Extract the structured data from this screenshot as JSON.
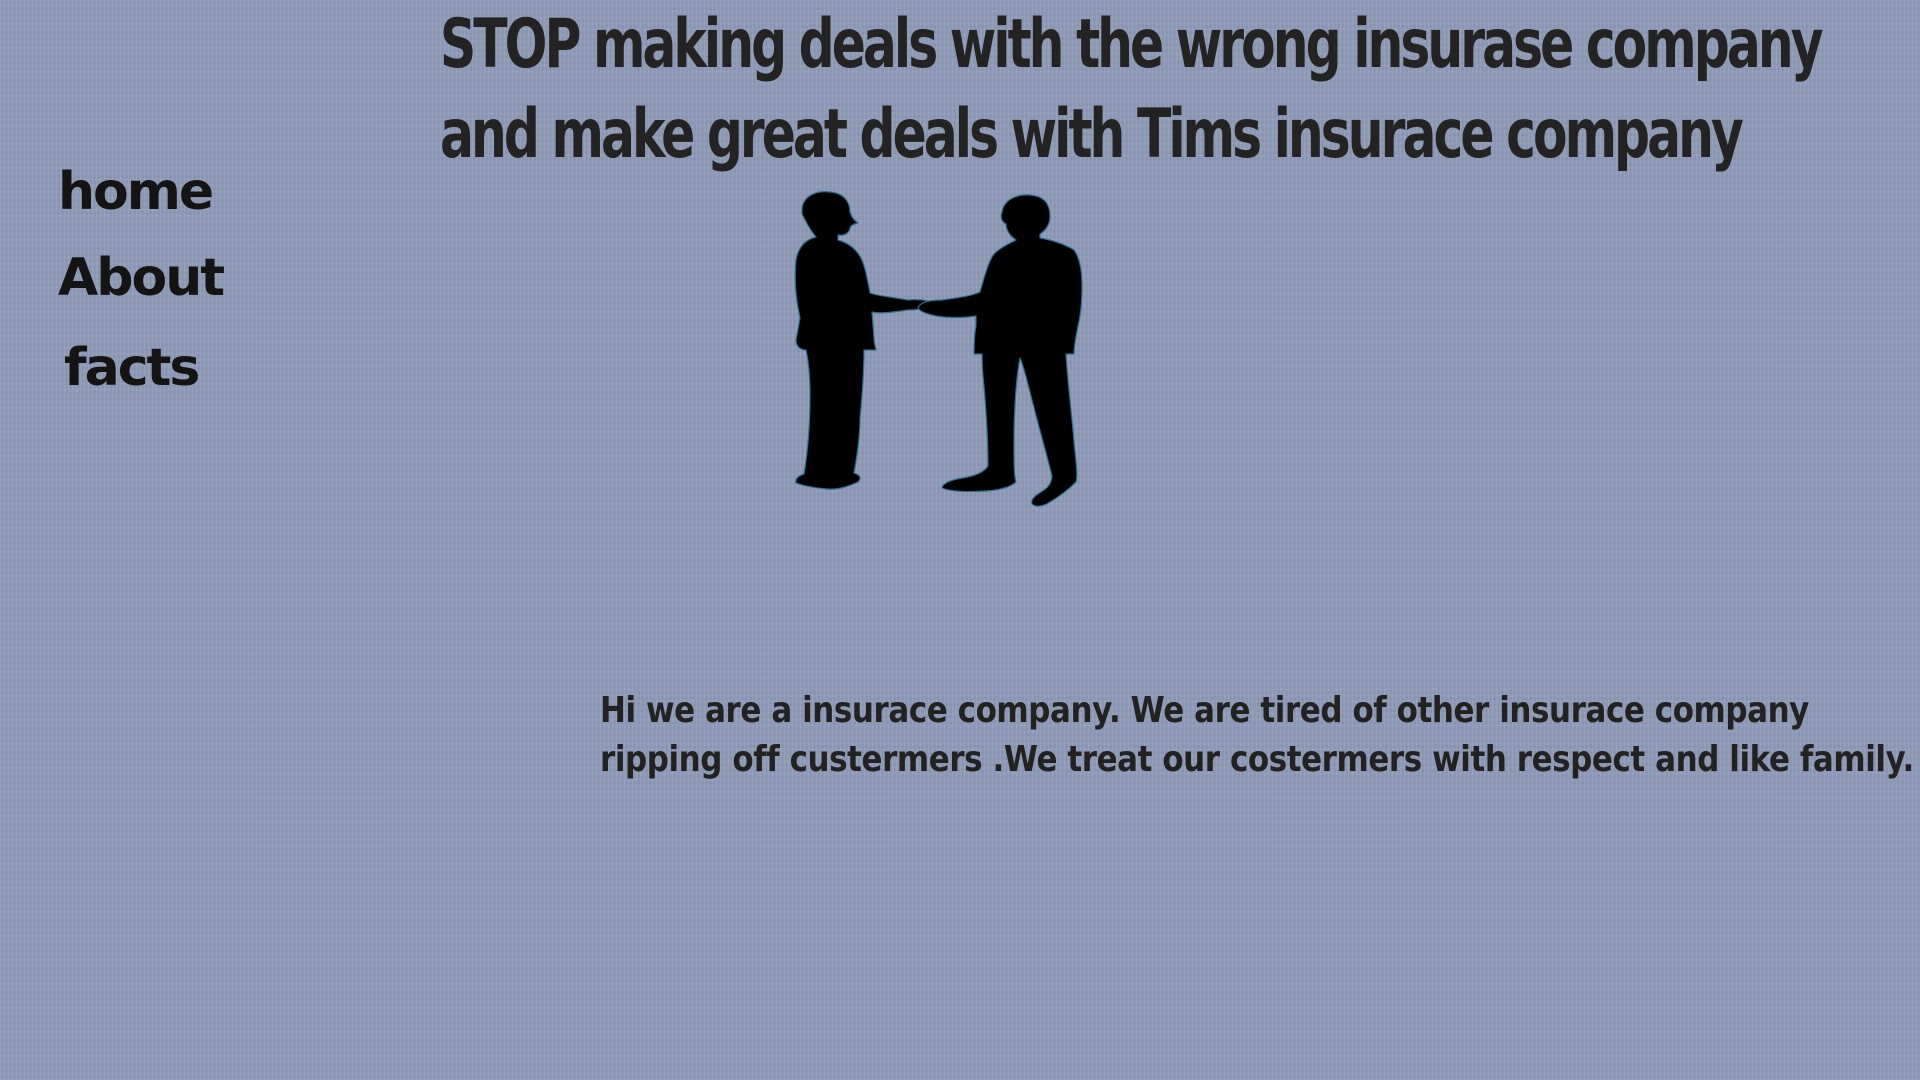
{
  "header": {
    "line1": "STOP  making deals with the wrong insurase company",
    "line2": "and make great deals with Tims insurace company"
  },
  "nav": {
    "home": "home",
    "about": "About",
    "facts": "facts"
  },
  "hero": {
    "icon": "handshake-silhouette",
    "color": "#000000"
  },
  "intro": {
    "line1": "Hi we are a insurace company. We are tired of other insurace company",
    "line2": "ripping off custermers .We treat our costermers with respect and like family."
  },
  "colors": {
    "background": "#8f9bb8",
    "text": "#1f1f1f"
  }
}
